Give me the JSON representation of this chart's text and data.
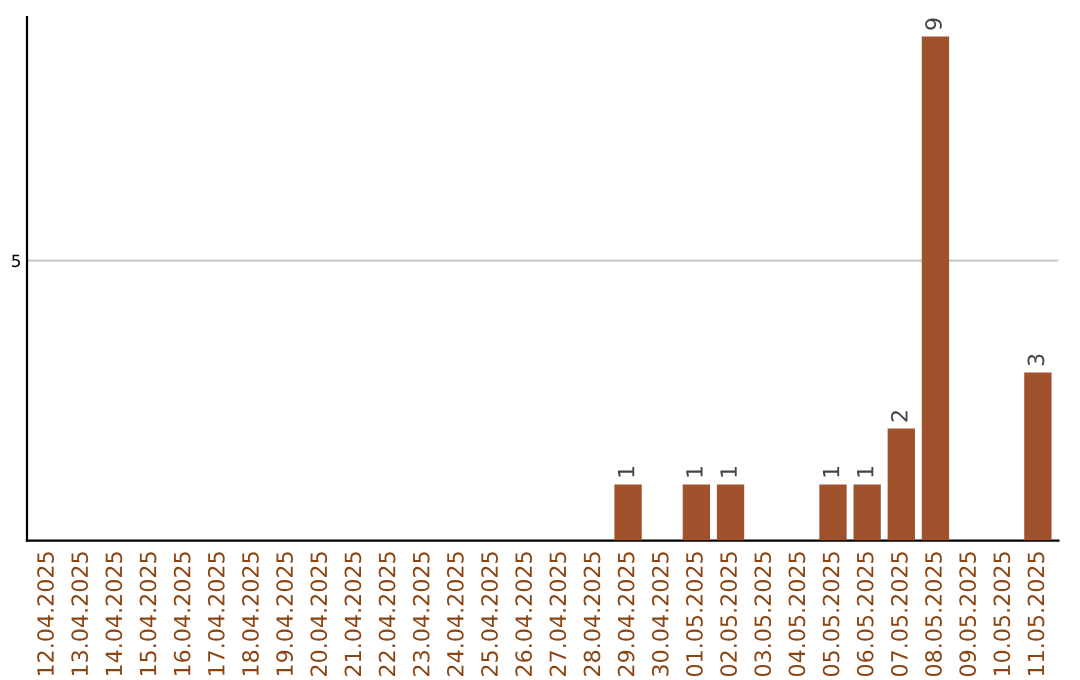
{
  "chart_data": {
    "type": "bar",
    "categories": [
      "12.04.2025",
      "13.04.2025",
      "14.04.2025",
      "15.04.2025",
      "16.04.2025",
      "17.04.2025",
      "18.04.2025",
      "19.04.2025",
      "20.04.2025",
      "21.04.2025",
      "22.04.2025",
      "23.04.2025",
      "24.04.2025",
      "25.04.2025",
      "26.04.2025",
      "27.04.2025",
      "28.04.2025",
      "29.04.2025",
      "30.04.2025",
      "01.05.2025",
      "02.05.2025",
      "03.05.2025",
      "04.05.2025",
      "05.05.2025",
      "06.05.2025",
      "07.05.2025",
      "08.05.2025",
      "09.05.2025",
      "10.05.2025",
      "11.05.2025"
    ],
    "values": [
      null,
      null,
      null,
      null,
      null,
      null,
      null,
      null,
      null,
      null,
      null,
      null,
      null,
      null,
      null,
      null,
      null,
      1,
      null,
      1,
      1,
      null,
      null,
      1,
      1,
      2,
      9,
      null,
      null,
      3
    ],
    "data_labels": true,
    "color": "#a0522d",
    "ylim": [
      0,
      9.35
    ],
    "yticks": [
      5
    ],
    "grid": "y"
  }
}
